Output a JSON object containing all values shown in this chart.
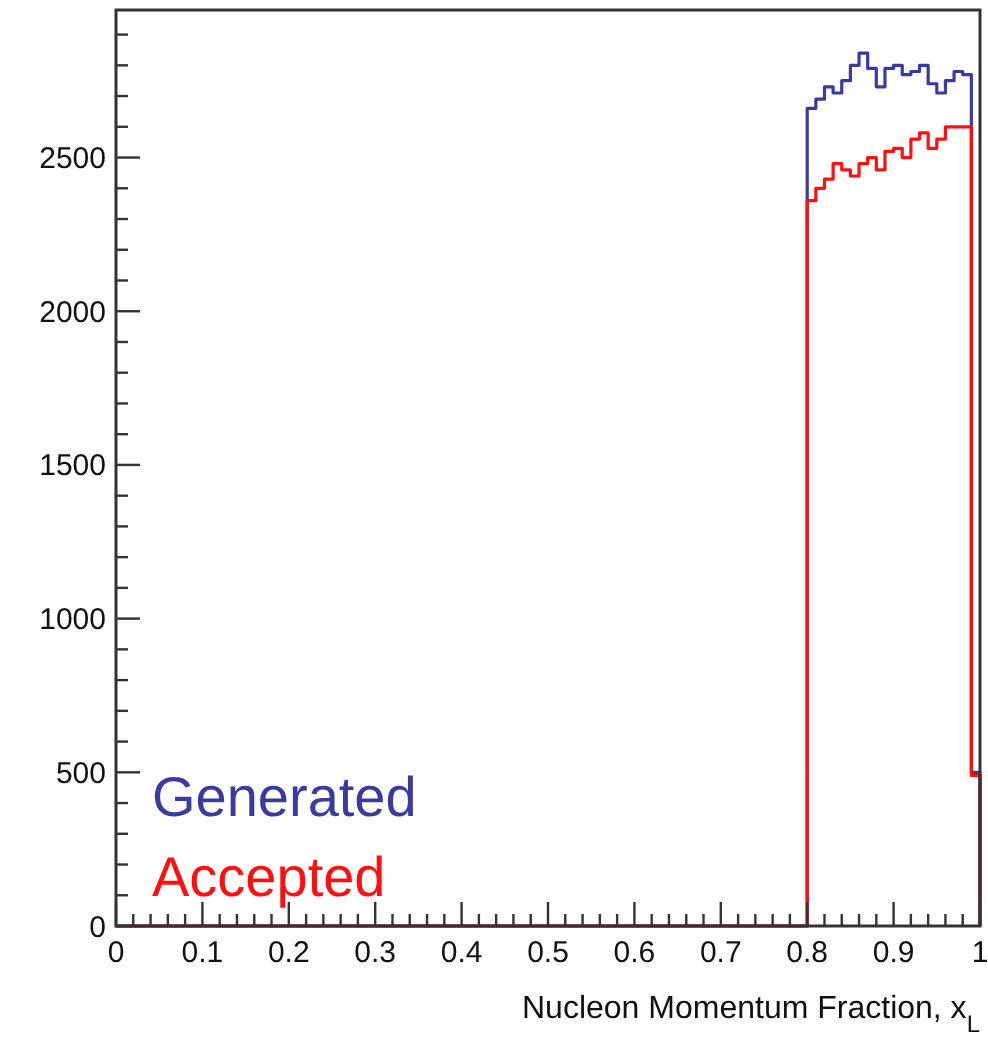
{
  "chart_data": {
    "type": "histogram",
    "xlabel": "Nucleon Momentum Fraction, x$_{L}$",
    "bins": [
      0,
      0.8,
      0.81,
      0.82,
      0.83,
      0.84,
      0.85,
      0.86,
      0.87,
      0.88,
      0.89,
      0.9,
      0.91,
      0.92,
      0.93,
      0.94,
      0.95,
      0.96,
      0.97,
      0.98,
      0.99,
      1.0
    ],
    "series": [
      {
        "name": "Generated",
        "color": "#3a3aa0",
        "values": [
          0,
          2660,
          2690,
          2730,
          2710,
          2750,
          2800,
          2840,
          2790,
          2730,
          2790,
          2800,
          2770,
          2780,
          2800,
          2740,
          2710,
          2750,
          2780,
          2770,
          500
        ]
      },
      {
        "name": "Accepted",
        "color": "#ff1010",
        "values": [
          0,
          2360,
          2400,
          2430,
          2480,
          2460,
          2440,
          2480,
          2500,
          2460,
          2520,
          2530,
          2500,
          2560,
          2580,
          2530,
          2560,
          2600,
          2600,
          2600,
          490
        ]
      }
    ],
    "xlim": [
      0,
      1
    ],
    "ylim": [
      0,
      2980
    ],
    "xticks": [
      0,
      {
        "value": 0.02,
        "label": null
      },
      {
        "value": 0.04,
        "label": null
      },
      {
        "value": 0.06,
        "label": null
      },
      {
        "value": 0.08,
        "label": null
      },
      0.1,
      {
        "value": 0.12,
        "label": null
      },
      {
        "value": 0.14,
        "label": null
      },
      {
        "value": 0.16,
        "label": null
      },
      {
        "value": 0.18,
        "label": null
      },
      0.2,
      {
        "value": 0.22,
        "label": null
      },
      {
        "value": 0.24,
        "label": null
      },
      {
        "value": 0.26,
        "label": null
      },
      {
        "value": 0.28,
        "label": null
      },
      0.3,
      {
        "value": 0.32,
        "label": null
      },
      {
        "value": 0.34,
        "label": null
      },
      {
        "value": 0.36,
        "label": null
      },
      {
        "value": 0.38,
        "label": null
      },
      0.4,
      {
        "value": 0.42,
        "label": null
      },
      {
        "value": 0.44,
        "label": null
      },
      {
        "value": 0.46,
        "label": null
      },
      {
        "value": 0.48,
        "label": null
      },
      0.5,
      {
        "value": 0.52,
        "label": null
      },
      {
        "value": 0.54,
        "label": null
      },
      {
        "value": 0.56,
        "label": null
      },
      {
        "value": 0.58,
        "label": null
      },
      0.6,
      {
        "value": 0.62,
        "label": null
      },
      {
        "value": 0.64,
        "label": null
      },
      {
        "value": 0.66,
        "label": null
      },
      {
        "value": 0.68,
        "label": null
      },
      0.7,
      {
        "value": 0.72,
        "label": null
      },
      {
        "value": 0.74,
        "label": null
      },
      {
        "value": 0.76,
        "label": null
      },
      {
        "value": 0.78,
        "label": null
      },
      0.8,
      {
        "value": 0.82,
        "label": null
      },
      {
        "value": 0.84,
        "label": null
      },
      {
        "value": 0.86,
        "label": null
      },
      {
        "value": 0.88,
        "label": null
      },
      0.9,
      {
        "value": 0.92,
        "label": null
      },
      {
        "value": 0.94,
        "label": null
      },
      {
        "value": 0.96,
        "label": null
      },
      {
        "value": 0.98,
        "label": null
      },
      1
    ],
    "yticks": [
      0,
      {
        "value": 100,
        "label": null
      },
      {
        "value": 200,
        "label": null
      },
      {
        "value": 300,
        "label": null
      },
      {
        "value": 400,
        "label": null
      },
      500,
      {
        "value": 600,
        "label": null
      },
      {
        "value": 700,
        "label": null
      },
      {
        "value": 800,
        "label": null
      },
      {
        "value": 900,
        "label": null
      },
      1000,
      {
        "value": 1100,
        "label": null
      },
      {
        "value": 1200,
        "label": null
      },
      {
        "value": 1300,
        "label": null
      },
      {
        "value": 1400,
        "label": null
      },
      1500,
      {
        "value": 1600,
        "label": null
      },
      {
        "value": 1700,
        "label": null
      },
      {
        "value": 1800,
        "label": null
      },
      {
        "value": 1900,
        "label": null
      },
      2000,
      {
        "value": 2100,
        "label": null
      },
      {
        "value": 2200,
        "label": null
      },
      {
        "value": 2300,
        "label": null
      },
      {
        "value": 2400,
        "label": null
      },
      2500,
      {
        "value": 2600,
        "label": null
      },
      {
        "value": 2700,
        "label": null
      },
      {
        "value": 2800,
        "label": null
      },
      {
        "value": 2900,
        "label": null
      }
    ],
    "legend": "bottom left",
    "line_style": "solid"
  }
}
